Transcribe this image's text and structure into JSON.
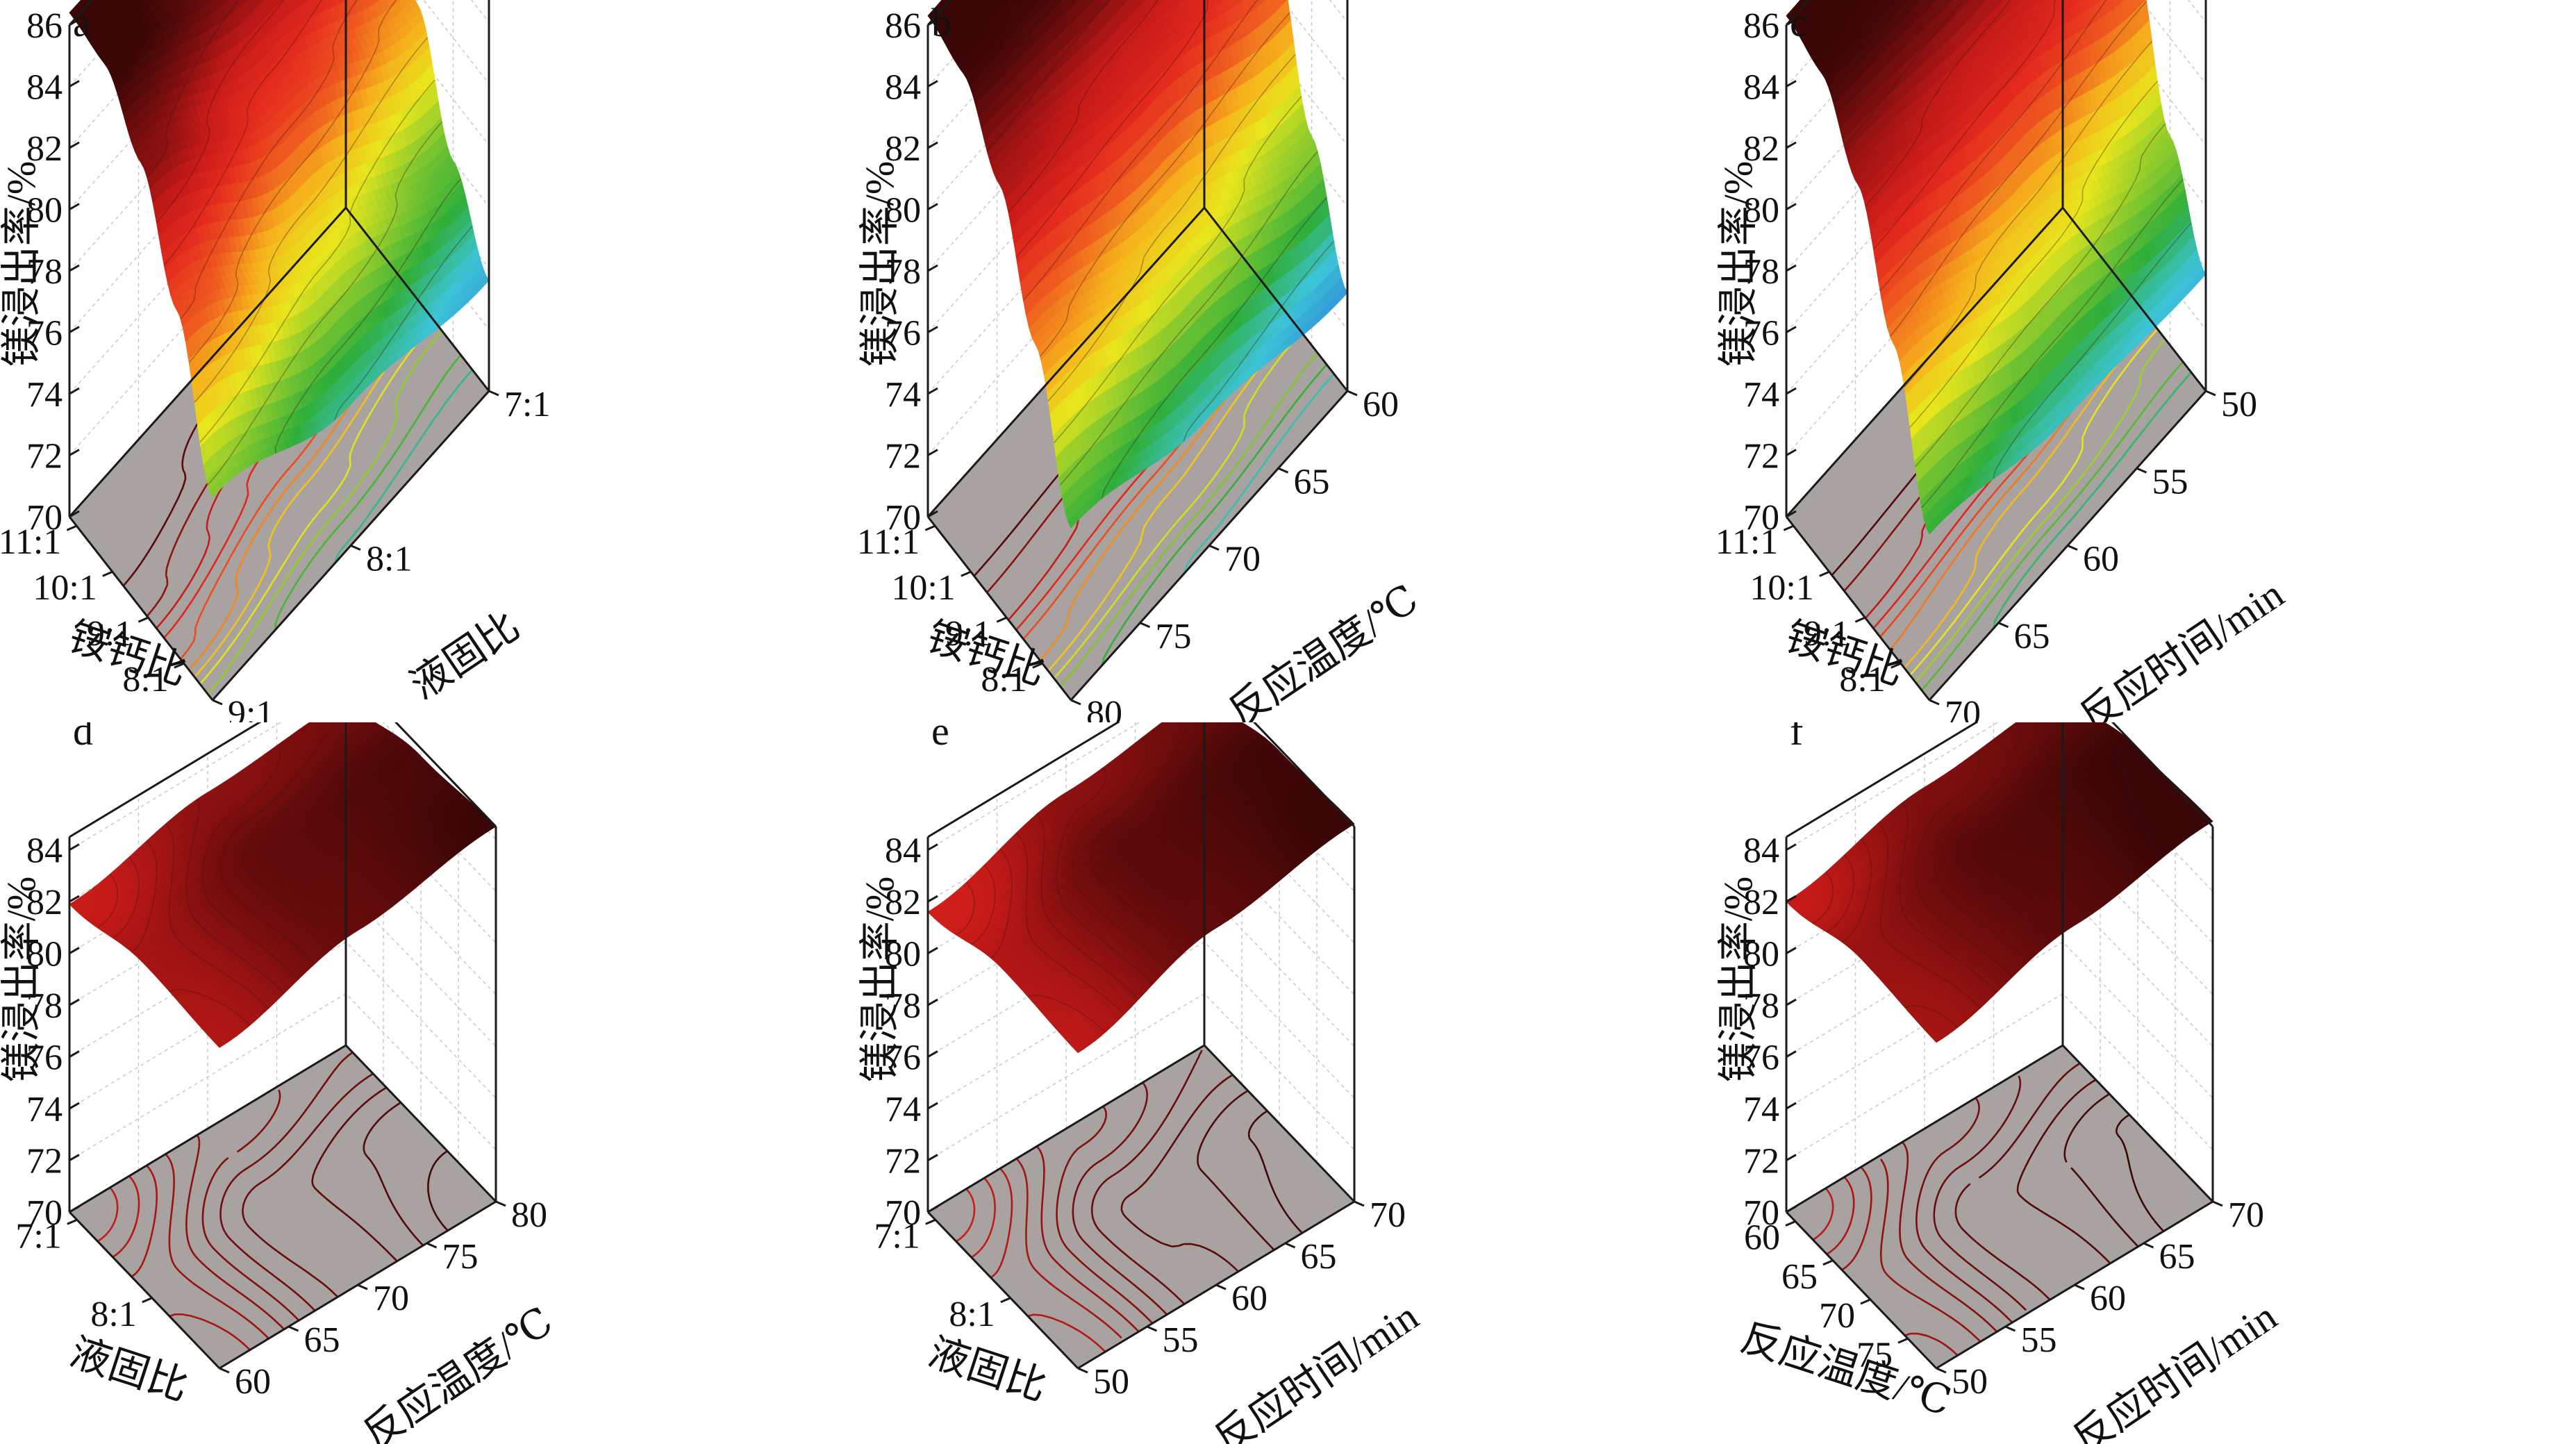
{
  "figure": {
    "background": "#ffffff"
  },
  "colors": {
    "floor": "#a8a2a0",
    "frame": "#1a1a1a",
    "grid": "#c9c9c9",
    "contour": "#5a3030",
    "colormap": [
      "#4b0082",
      "#3a2fbd",
      "#2f7fd6",
      "#3cc4d8",
      "#2fae3a",
      "#86c92e",
      "#e8e61c",
      "#f6b21c",
      "#ef5a1f",
      "#e42a1e",
      "#c41a18",
      "#7a0e0e",
      "#3a0606"
    ]
  },
  "chart_data": [
    {
      "id": "a",
      "type": "surface",
      "panel_label": "a",
      "xlabel": "铵钙比",
      "ylabel": "液固比",
      "zlabel": "镁浸出率/%",
      "x_ticks": [
        "11:1",
        "10:1",
        "9:1",
        "8:1"
      ],
      "y_ticks": [
        "9:1",
        "8:1",
        "7:1"
      ],
      "z_ticks": [
        "70",
        "72",
        "74",
        "76",
        "78",
        "80",
        "82",
        "84",
        "86"
      ],
      "zlim": [
        70,
        86
      ],
      "surface_z": [
        [
          86.4,
          85.9,
          85.6
        ],
        [
          86.2,
          84.8,
          83.6
        ],
        [
          84.5,
          81.8,
          79.6
        ],
        [
          81.2,
          78.2,
          76.0
        ],
        [
          76.6,
          74.6,
          73.6
        ]
      ]
    },
    {
      "id": "b",
      "type": "surface",
      "panel_label": "b",
      "xlabel": "铵钙比",
      "ylabel": "反应温度/℃",
      "zlabel": "镁浸出率/%",
      "x_ticks": [
        "11:1",
        "10:1",
        "9:1",
        "8:1"
      ],
      "y_ticks": [
        "80",
        "75",
        "70",
        "65",
        "60"
      ],
      "z_ticks": [
        "70",
        "72",
        "74",
        "76",
        "78",
        "80",
        "82",
        "84",
        "86"
      ],
      "zlim": [
        70,
        86
      ],
      "surface_z": [
        [
          86.3,
          86.6,
          86.4
        ],
        [
          85.9,
          85.7,
          84.9
        ],
        [
          83.8,
          82.9,
          81.4
        ],
        [
          80.1,
          78.6,
          76.8
        ],
        [
          75.6,
          74.2,
          73.2
        ]
      ]
    },
    {
      "id": "c",
      "type": "surface",
      "panel_label": "c",
      "xlabel": "铵钙比",
      "ylabel": "反应时间/min",
      "zlabel": "镁浸出率/%",
      "x_ticks": [
        "11:1",
        "10:1",
        "9:1",
        "8:1"
      ],
      "y_ticks": [
        "70",
        "65",
        "60",
        "55",
        "50"
      ],
      "z_ticks": [
        "70",
        "72",
        "74",
        "76",
        "78",
        "80",
        "82",
        "84",
        "86"
      ],
      "zlim": [
        70,
        86
      ],
      "surface_z": [
        [
          86.3,
          86.6,
          86.4
        ],
        [
          85.9,
          85.7,
          84.9
        ],
        [
          83.8,
          82.9,
          81.4
        ],
        [
          80.1,
          78.6,
          76.8
        ],
        [
          75.4,
          74.2,
          73.8
        ]
      ]
    },
    {
      "id": "d",
      "type": "surface",
      "panel_label": "d",
      "xlabel": "液固比",
      "ylabel": "反应温度/℃",
      "zlabel": "镁浸出率/%",
      "x_ticks": [
        "7:1",
        "8:1"
      ],
      "y_ticks": [
        "60",
        "65",
        "70",
        "75",
        "80"
      ],
      "z_ticks": [
        "70",
        "72",
        "74",
        "76",
        "78",
        "80",
        "82",
        "84"
      ],
      "zlim": [
        70,
        84.5
      ],
      "surface_z": [
        [
          81.9,
          83.0,
          83.4
        ],
        [
          82.6,
          83.8,
          84.2
        ],
        [
          82.4,
          83.7,
          84.5
        ]
      ]
    },
    {
      "id": "e",
      "type": "surface",
      "panel_label": "e",
      "xlabel": "液固比",
      "ylabel": "反应时间/min",
      "zlabel": "镁浸出率/%",
      "x_ticks": [
        "7:1",
        "8:1"
      ],
      "y_ticks": [
        "50",
        "55",
        "60",
        "65",
        "70"
      ],
      "z_ticks": [
        "70",
        "72",
        "74",
        "76",
        "78",
        "80",
        "82",
        "84"
      ],
      "zlim": [
        70,
        84.5
      ],
      "surface_z": [
        [
          81.6,
          83.0,
          83.6
        ],
        [
          82.4,
          83.9,
          84.4
        ],
        [
          82.2,
          83.8,
          84.6
        ]
      ]
    },
    {
      "id": "f",
      "type": "surface",
      "panel_label": "f",
      "xlabel": "反应温度/℃",
      "ylabel": "反应时间/min",
      "zlabel": "镁浸出率/%",
      "x_ticks": [
        "60",
        "65",
        "70",
        "75"
      ],
      "y_ticks": [
        "50",
        "55",
        "60",
        "65",
        "70"
      ],
      "z_ticks": [
        "70",
        "72",
        "74",
        "76",
        "78",
        "80",
        "82",
        "84"
      ],
      "zlim": [
        70,
        84.5
      ],
      "surface_z": [
        [
          82.0,
          83.2,
          83.7
        ],
        [
          82.8,
          84.0,
          84.5
        ],
        [
          82.6,
          83.9,
          84.7
        ]
      ]
    }
  ]
}
